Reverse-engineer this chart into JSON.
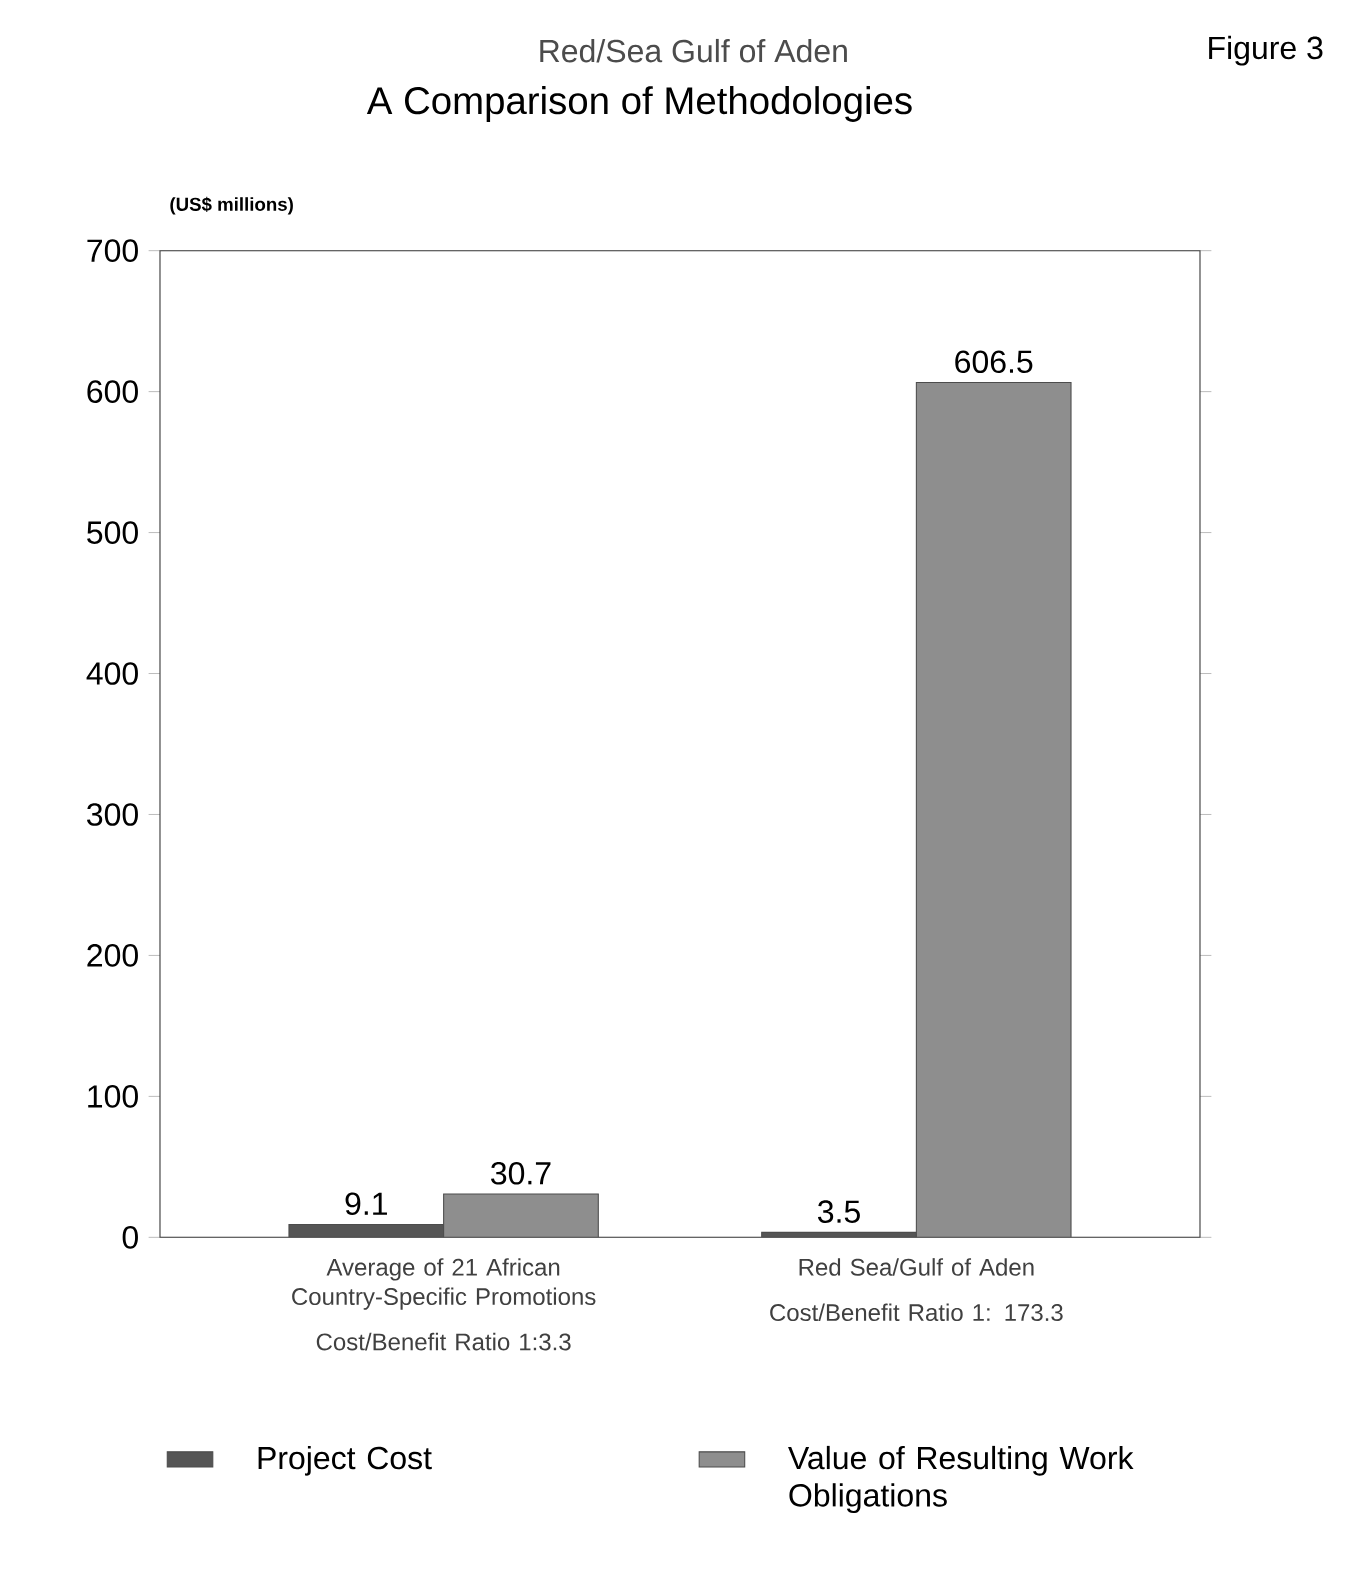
{
  "chart_data": {
    "type": "bar",
    "title": "A Comparison of Methodologies",
    "subtitle": "Red/Sea Gulf of Aden",
    "ylabel": "(US$ millions)",
    "categories": [
      "Average of 21 African Country-Specific Promotions",
      "Red Sea/Gulf of Aden"
    ],
    "series": [
      {
        "name": "Project Cost",
        "color": "#555555",
        "values": [
          9.1,
          3.5
        ]
      },
      {
        "name": "Value of Resulting Work Obligations",
        "color": "#8e8e8e",
        "values": [
          30.7,
          606.5
        ]
      }
    ],
    "annotations": [
      "Cost/Benefit Ratio 1:3.3",
      "Cost/Benefit Ratio 1: 173.3",
      "Figure 3"
    ],
    "ylim": [
      0,
      700
    ],
    "yticks": [
      0,
      100,
      200,
      300,
      400,
      500,
      600,
      700
    ],
    "data_labels": true,
    "legend": "bottom",
    "grid": false
  }
}
